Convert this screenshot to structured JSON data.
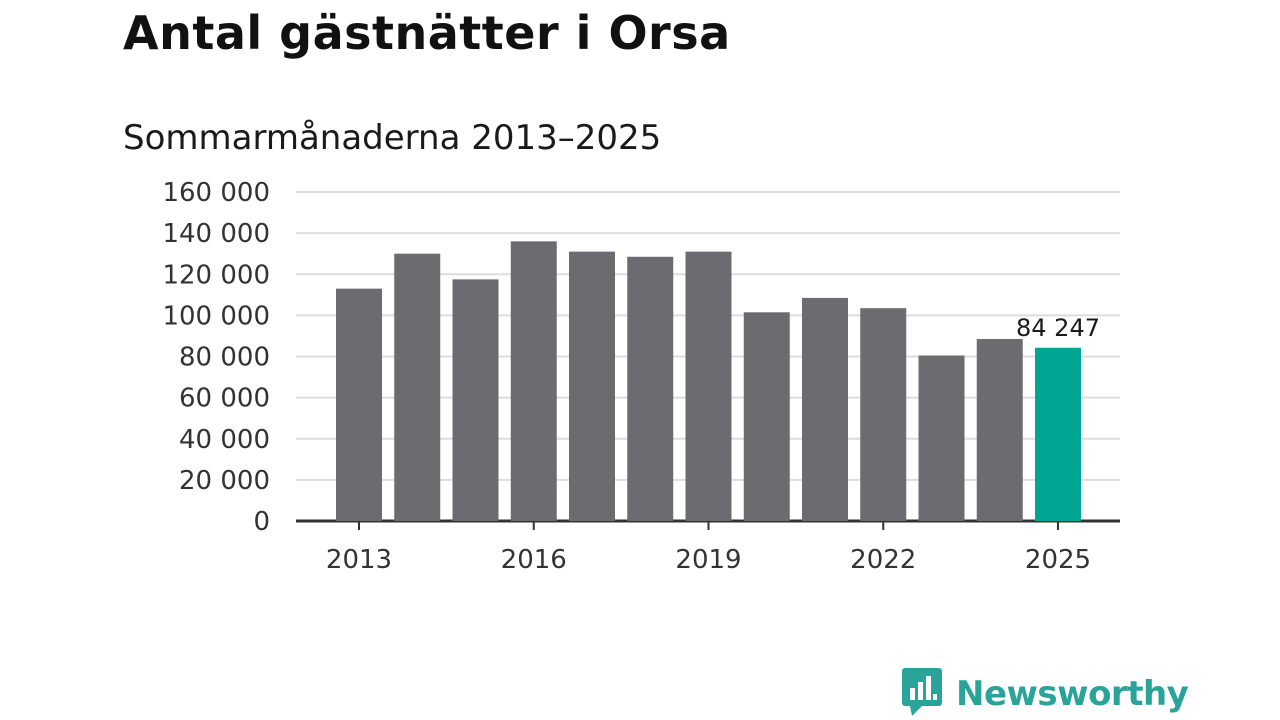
{
  "header": {
    "title": "Antal gästnätter i Orsa",
    "subtitle": "Sommarmånaderna 2013–2025"
  },
  "brand": {
    "name": "Newsworthy",
    "icon": "newsworthy-logo-icon",
    "color": "#2aa39a"
  },
  "colors": {
    "bar": "#6c6b70",
    "highlight": "#00a594",
    "grid": "#dddddd",
    "axis": "#333333"
  },
  "chart_data": {
    "type": "bar",
    "title": "Antal gästnätter i Orsa",
    "subtitle": "Sommarmånaderna 2013–2025",
    "xlabel": "",
    "ylabel": "",
    "categories": [
      "2013",
      "2014",
      "2015",
      "2016",
      "2017",
      "2018",
      "2019",
      "2020",
      "2021",
      "2022",
      "2023",
      "2024",
      "2025"
    ],
    "values": [
      113000,
      130000,
      117500,
      136000,
      131000,
      128500,
      131000,
      101500,
      108500,
      103500,
      80500,
      88500,
      84247
    ],
    "highlight_index": 12,
    "data_labels": [
      {
        "index": 12,
        "text": "84 247"
      }
    ],
    "ylim": [
      0,
      160000
    ],
    "yticks": [
      0,
      20000,
      40000,
      60000,
      80000,
      100000,
      120000,
      140000,
      160000
    ],
    "ytick_labels": [
      "0",
      "20 000",
      "40 000",
      "60 000",
      "80 000",
      "100 000",
      "120 000",
      "140 000",
      "160 000"
    ],
    "xticks": [
      "2013",
      "2016",
      "2019",
      "2022",
      "2025"
    ],
    "grid": true,
    "legend": "none"
  }
}
